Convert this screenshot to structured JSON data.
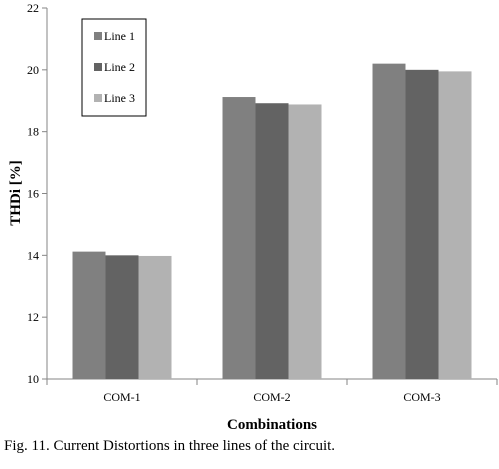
{
  "caption": "Fig. 11.  Current Distortions in three lines of the circuit.",
  "chart_data": {
    "type": "bar",
    "title": "",
    "xlabel": "Combinations",
    "ylabel": "THDi [%]",
    "ylim": [
      10,
      22
    ],
    "yticks": [
      10,
      12,
      14,
      16,
      18,
      20,
      22
    ],
    "grid": false,
    "legend_position": "top-left",
    "categories": [
      "COM-1",
      "COM-2",
      "COM-3"
    ],
    "series": [
      {
        "name": "Line 1",
        "color": "#808080",
        "values": [
          14.12,
          19.12,
          20.2
        ]
      },
      {
        "name": "Line 2",
        "color": "#636363",
        "values": [
          14.0,
          18.92,
          20.0
        ]
      },
      {
        "name": "Line 3",
        "color": "#b2b2b2",
        "values": [
          13.98,
          18.88,
          19.95
        ]
      }
    ]
  }
}
